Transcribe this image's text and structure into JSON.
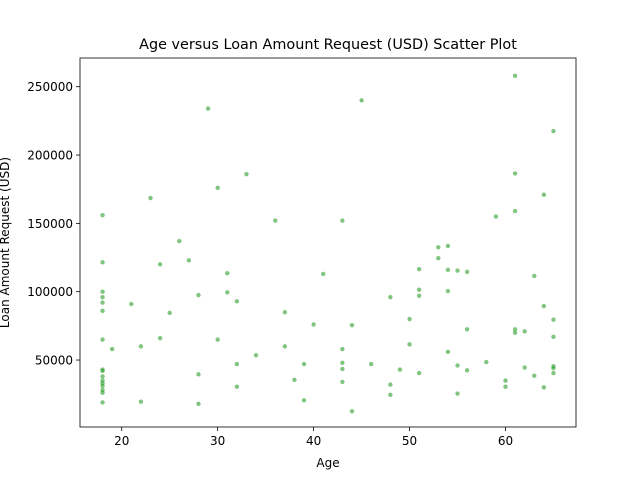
{
  "chart_data": {
    "type": "scatter",
    "title": "Age versus Loan Amount Request (USD) Scatter Plot",
    "xlabel": "Age",
    "ylabel": "Loan Amount Request (USD)",
    "xlim": [
      15.65,
      67.35
    ],
    "ylim": [
      1000,
      271000
    ],
    "xticks": [
      20,
      30,
      40,
      50,
      60
    ],
    "yticks": [
      50000,
      100000,
      150000,
      200000,
      250000
    ],
    "xtick_labels": [
      "20",
      "30",
      "40",
      "50",
      "60"
    ],
    "ytick_labels": [
      "50000",
      "100000",
      "150000",
      "200000",
      "250000"
    ],
    "grid": false,
    "color": "#2ca02c",
    "points": [
      [
        18,
        156000
      ],
      [
        18,
        121500
      ],
      [
        18,
        100000
      ],
      [
        18,
        96000
      ],
      [
        18,
        92000
      ],
      [
        18,
        86000
      ],
      [
        18,
        65000
      ],
      [
        18,
        43000
      ],
      [
        18,
        42000
      ],
      [
        18,
        38000
      ],
      [
        18,
        35000
      ],
      [
        18,
        33000
      ],
      [
        18,
        31000
      ],
      [
        18,
        28000
      ],
      [
        18,
        26000
      ],
      [
        18,
        19000
      ],
      [
        19,
        58000
      ],
      [
        21,
        91000
      ],
      [
        22,
        60000
      ],
      [
        22,
        19500
      ],
      [
        23,
        168500
      ],
      [
        24,
        120000
      ],
      [
        24,
        66000
      ],
      [
        25,
        84500
      ],
      [
        26,
        137000
      ],
      [
        27,
        123000
      ],
      [
        28,
        97500
      ],
      [
        28,
        39500
      ],
      [
        28,
        18000
      ],
      [
        29,
        234000
      ],
      [
        30,
        176000
      ],
      [
        30,
        65000
      ],
      [
        31,
        113500
      ],
      [
        31,
        99500
      ],
      [
        32,
        93000
      ],
      [
        32,
        47000
      ],
      [
        32,
        30500
      ],
      [
        33,
        186000
      ],
      [
        34,
        53500
      ],
      [
        36,
        152000
      ],
      [
        37,
        85000
      ],
      [
        37,
        60000
      ],
      [
        38,
        35500
      ],
      [
        39,
        47000
      ],
      [
        39,
        20500
      ],
      [
        40,
        76000
      ],
      [
        41,
        113000
      ],
      [
        43,
        152000
      ],
      [
        43,
        58000
      ],
      [
        43,
        48000
      ],
      [
        43,
        43500
      ],
      [
        43,
        34000
      ],
      [
        44,
        75500
      ],
      [
        44,
        12500
      ],
      [
        45,
        240000
      ],
      [
        46,
        47000
      ],
      [
        48,
        96000
      ],
      [
        48,
        32000
      ],
      [
        48,
        24500
      ],
      [
        49,
        43000
      ],
      [
        50,
        80000
      ],
      [
        50,
        61500
      ],
      [
        51,
        116500
      ],
      [
        51,
        101500
      ],
      [
        51,
        97000
      ],
      [
        51,
        40500
      ],
      [
        53,
        132500
      ],
      [
        53,
        124500
      ],
      [
        54,
        133500
      ],
      [
        54,
        116000
      ],
      [
        54,
        100500
      ],
      [
        54,
        56000
      ],
      [
        55,
        115500
      ],
      [
        55,
        46000
      ],
      [
        55,
        25500
      ],
      [
        56,
        114500
      ],
      [
        56,
        72500
      ],
      [
        56,
        42500
      ],
      [
        58,
        48500
      ],
      [
        59,
        155000
      ],
      [
        60,
        35000
      ],
      [
        60,
        30500
      ],
      [
        61,
        258000
      ],
      [
        61,
        186500
      ],
      [
        61,
        159000
      ],
      [
        61,
        72500
      ],
      [
        61,
        70000
      ],
      [
        62,
        71000
      ],
      [
        62,
        44500
      ],
      [
        63,
        111500
      ],
      [
        63,
        38500
      ],
      [
        64,
        171000
      ],
      [
        64,
        89500
      ],
      [
        64,
        30000
      ],
      [
        65,
        217500
      ],
      [
        65,
        79500
      ],
      [
        65,
        67000
      ],
      [
        65,
        45500
      ],
      [
        65,
        44000
      ],
      [
        65,
        40500
      ]
    ]
  }
}
